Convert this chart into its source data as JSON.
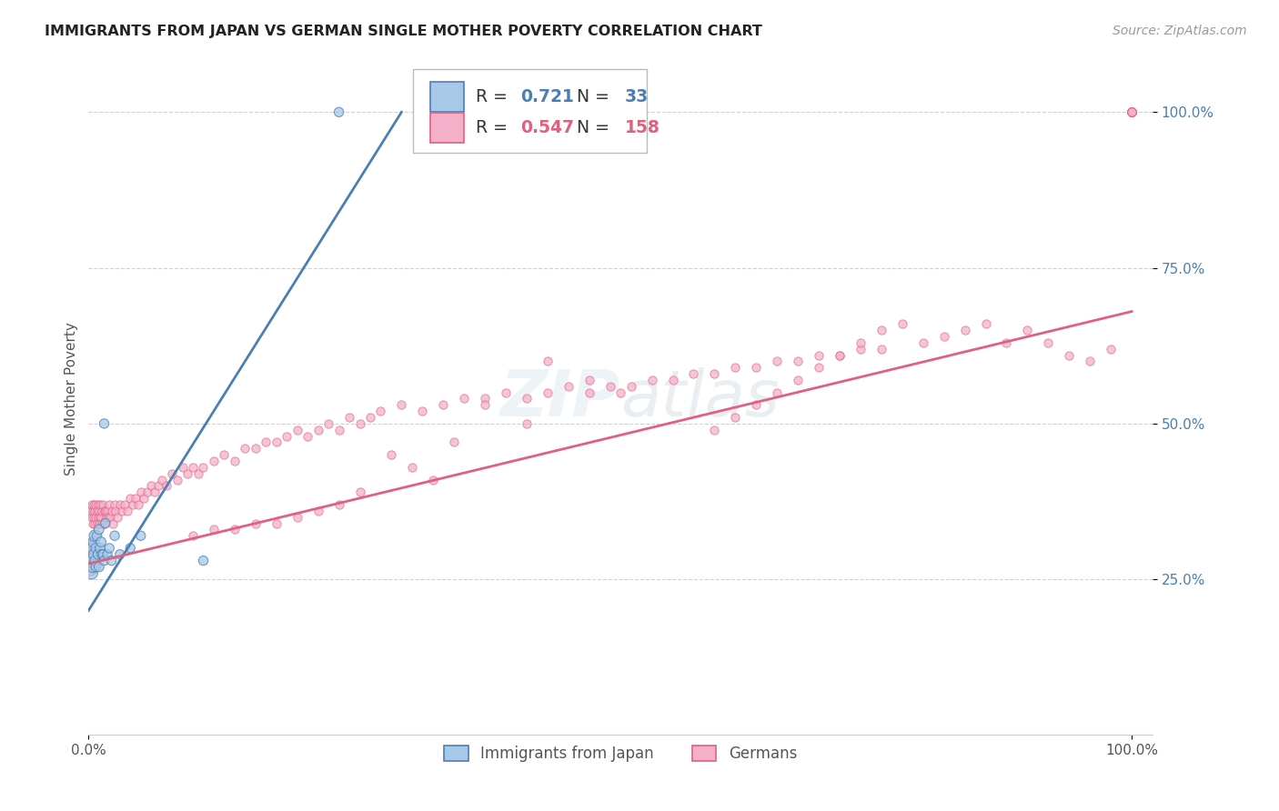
{
  "title": "IMMIGRANTS FROM JAPAN VS GERMAN SINGLE MOTHER POVERTY CORRELATION CHART",
  "source": "Source: ZipAtlas.com",
  "ylabel": "Single Mother Poverty",
  "ytick_labels": [
    "25.0%",
    "50.0%",
    "75.0%",
    "100.0%"
  ],
  "ytick_values": [
    0.25,
    0.5,
    0.75,
    1.0
  ],
  "legend_blue_R": "0.721",
  "legend_blue_N": "33",
  "legend_pink_R": "0.547",
  "legend_pink_N": "158",
  "legend_label_blue": "Immigrants from Japan",
  "legend_label_pink": "Germans",
  "blue_color": "#a8c8e8",
  "pink_color": "#f4b0c8",
  "blue_line_color": "#4a7fb5",
  "pink_line_color": "#e06080",
  "blue_edge_color": "#4a7fb5",
  "pink_edge_color": "#e06080",
  "japan_x": [
    0.001,
    0.002,
    0.002,
    0.003,
    0.003,
    0.004,
    0.004,
    0.005,
    0.005,
    0.006,
    0.006,
    0.007,
    0.007,
    0.008,
    0.009,
    0.01,
    0.01,
    0.011,
    0.012,
    0.013,
    0.014,
    0.015,
    0.015,
    0.016,
    0.018,
    0.02,
    0.022,
    0.025,
    0.03,
    0.04,
    0.05,
    0.11,
    0.24
  ],
  "japan_y": [
    0.27,
    0.3,
    0.29,
    0.28,
    0.26,
    0.3,
    0.27,
    0.31,
    0.29,
    0.32,
    0.28,
    0.3,
    0.27,
    0.32,
    0.29,
    0.33,
    0.27,
    0.3,
    0.31,
    0.29,
    0.29,
    0.28,
    0.5,
    0.34,
    0.29,
    0.3,
    0.28,
    0.32,
    0.29,
    0.3,
    0.32,
    0.28,
    1.0
  ],
  "japan_sizes": [
    200,
    150,
    120,
    120,
    90,
    100,
    80,
    80,
    70,
    80,
    60,
    60,
    60,
    60,
    60,
    60,
    60,
    60,
    60,
    60,
    55,
    55,
    55,
    55,
    55,
    55,
    55,
    55,
    55,
    55,
    55,
    55,
    55
  ],
  "german_x": [
    0.002,
    0.003,
    0.003,
    0.004,
    0.004,
    0.005,
    0.005,
    0.006,
    0.006,
    0.007,
    0.007,
    0.008,
    0.008,
    0.009,
    0.009,
    0.01,
    0.01,
    0.011,
    0.011,
    0.012,
    0.013,
    0.013,
    0.014,
    0.015,
    0.015,
    0.016,
    0.017,
    0.018,
    0.019,
    0.02,
    0.021,
    0.022,
    0.023,
    0.025,
    0.026,
    0.028,
    0.03,
    0.032,
    0.035,
    0.037,
    0.04,
    0.042,
    0.045,
    0.048,
    0.05,
    0.053,
    0.056,
    0.06,
    0.063,
    0.067,
    0.07,
    0.075,
    0.08,
    0.085,
    0.09,
    0.095,
    0.1,
    0.105,
    0.11,
    0.12,
    0.13,
    0.14,
    0.15,
    0.16,
    0.17,
    0.18,
    0.19,
    0.2,
    0.21,
    0.22,
    0.23,
    0.24,
    0.25,
    0.26,
    0.27,
    0.28,
    0.3,
    0.32,
    0.34,
    0.36,
    0.38,
    0.4,
    0.42,
    0.44,
    0.46,
    0.48,
    0.5,
    0.52,
    0.54,
    0.56,
    0.58,
    0.6,
    0.62,
    0.64,
    0.66,
    0.68,
    0.7,
    0.72,
    0.74,
    0.76,
    0.6,
    0.62,
    0.64,
    0.66,
    0.68,
    0.7,
    0.72,
    0.74,
    0.76,
    0.78,
    0.8,
    0.82,
    0.84,
    0.86,
    0.88,
    0.9,
    0.92,
    0.94,
    0.96,
    0.98,
    1.0,
    1.0,
    1.0,
    1.0,
    1.0,
    1.0,
    1.0,
    1.0,
    1.0,
    1.0,
    1.0,
    1.0,
    1.0,
    1.0,
    1.0,
    1.0,
    1.0,
    1.0,
    1.0,
    1.0,
    0.44,
    0.48,
    0.51,
    0.38,
    0.42,
    0.35,
    0.29,
    0.31,
    0.33,
    0.26,
    0.24,
    0.22,
    0.2,
    0.18,
    0.16,
    0.14,
    0.12,
    0.1
  ],
  "german_y": [
    0.36,
    0.35,
    0.37,
    0.36,
    0.34,
    0.37,
    0.35,
    0.36,
    0.34,
    0.37,
    0.35,
    0.36,
    0.34,
    0.37,
    0.35,
    0.36,
    0.34,
    0.35,
    0.37,
    0.35,
    0.36,
    0.34,
    0.37,
    0.36,
    0.34,
    0.36,
    0.35,
    0.36,
    0.35,
    0.37,
    0.35,
    0.36,
    0.34,
    0.37,
    0.36,
    0.35,
    0.37,
    0.36,
    0.37,
    0.36,
    0.38,
    0.37,
    0.38,
    0.37,
    0.39,
    0.38,
    0.39,
    0.4,
    0.39,
    0.4,
    0.41,
    0.4,
    0.42,
    0.41,
    0.43,
    0.42,
    0.43,
    0.42,
    0.43,
    0.44,
    0.45,
    0.44,
    0.46,
    0.46,
    0.47,
    0.47,
    0.48,
    0.49,
    0.48,
    0.49,
    0.5,
    0.49,
    0.51,
    0.5,
    0.51,
    0.52,
    0.53,
    0.52,
    0.53,
    0.54,
    0.54,
    0.55,
    0.54,
    0.55,
    0.56,
    0.55,
    0.56,
    0.56,
    0.57,
    0.57,
    0.58,
    0.58,
    0.59,
    0.59,
    0.6,
    0.6,
    0.61,
    0.61,
    0.62,
    0.62,
    0.49,
    0.51,
    0.53,
    0.55,
    0.57,
    0.59,
    0.61,
    0.63,
    0.65,
    0.66,
    0.63,
    0.64,
    0.65,
    0.66,
    0.63,
    0.65,
    0.63,
    0.61,
    0.6,
    0.62,
    1.0,
    1.0,
    1.0,
    1.0,
    1.0,
    1.0,
    1.0,
    1.0,
    1.0,
    1.0,
    1.0,
    1.0,
    1.0,
    1.0,
    1.0,
    1.0,
    1.0,
    1.0,
    1.0,
    1.0,
    0.6,
    0.57,
    0.55,
    0.53,
    0.5,
    0.47,
    0.45,
    0.43,
    0.41,
    0.39,
    0.37,
    0.36,
    0.35,
    0.34,
    0.34,
    0.33,
    0.33,
    0.32
  ],
  "blue_line_x": [
    0.0,
    0.3
  ],
  "blue_line_y": [
    0.2,
    1.0
  ],
  "pink_line_x": [
    0.0,
    1.0
  ],
  "pink_line_y": [
    0.275,
    0.68
  ],
  "xlim": [
    0.0,
    1.02
  ],
  "ylim": [
    0.0,
    1.08
  ],
  "title_fontsize": 11.5,
  "source_fontsize": 10,
  "tick_fontsize": 11,
  "ylabel_fontsize": 11
}
